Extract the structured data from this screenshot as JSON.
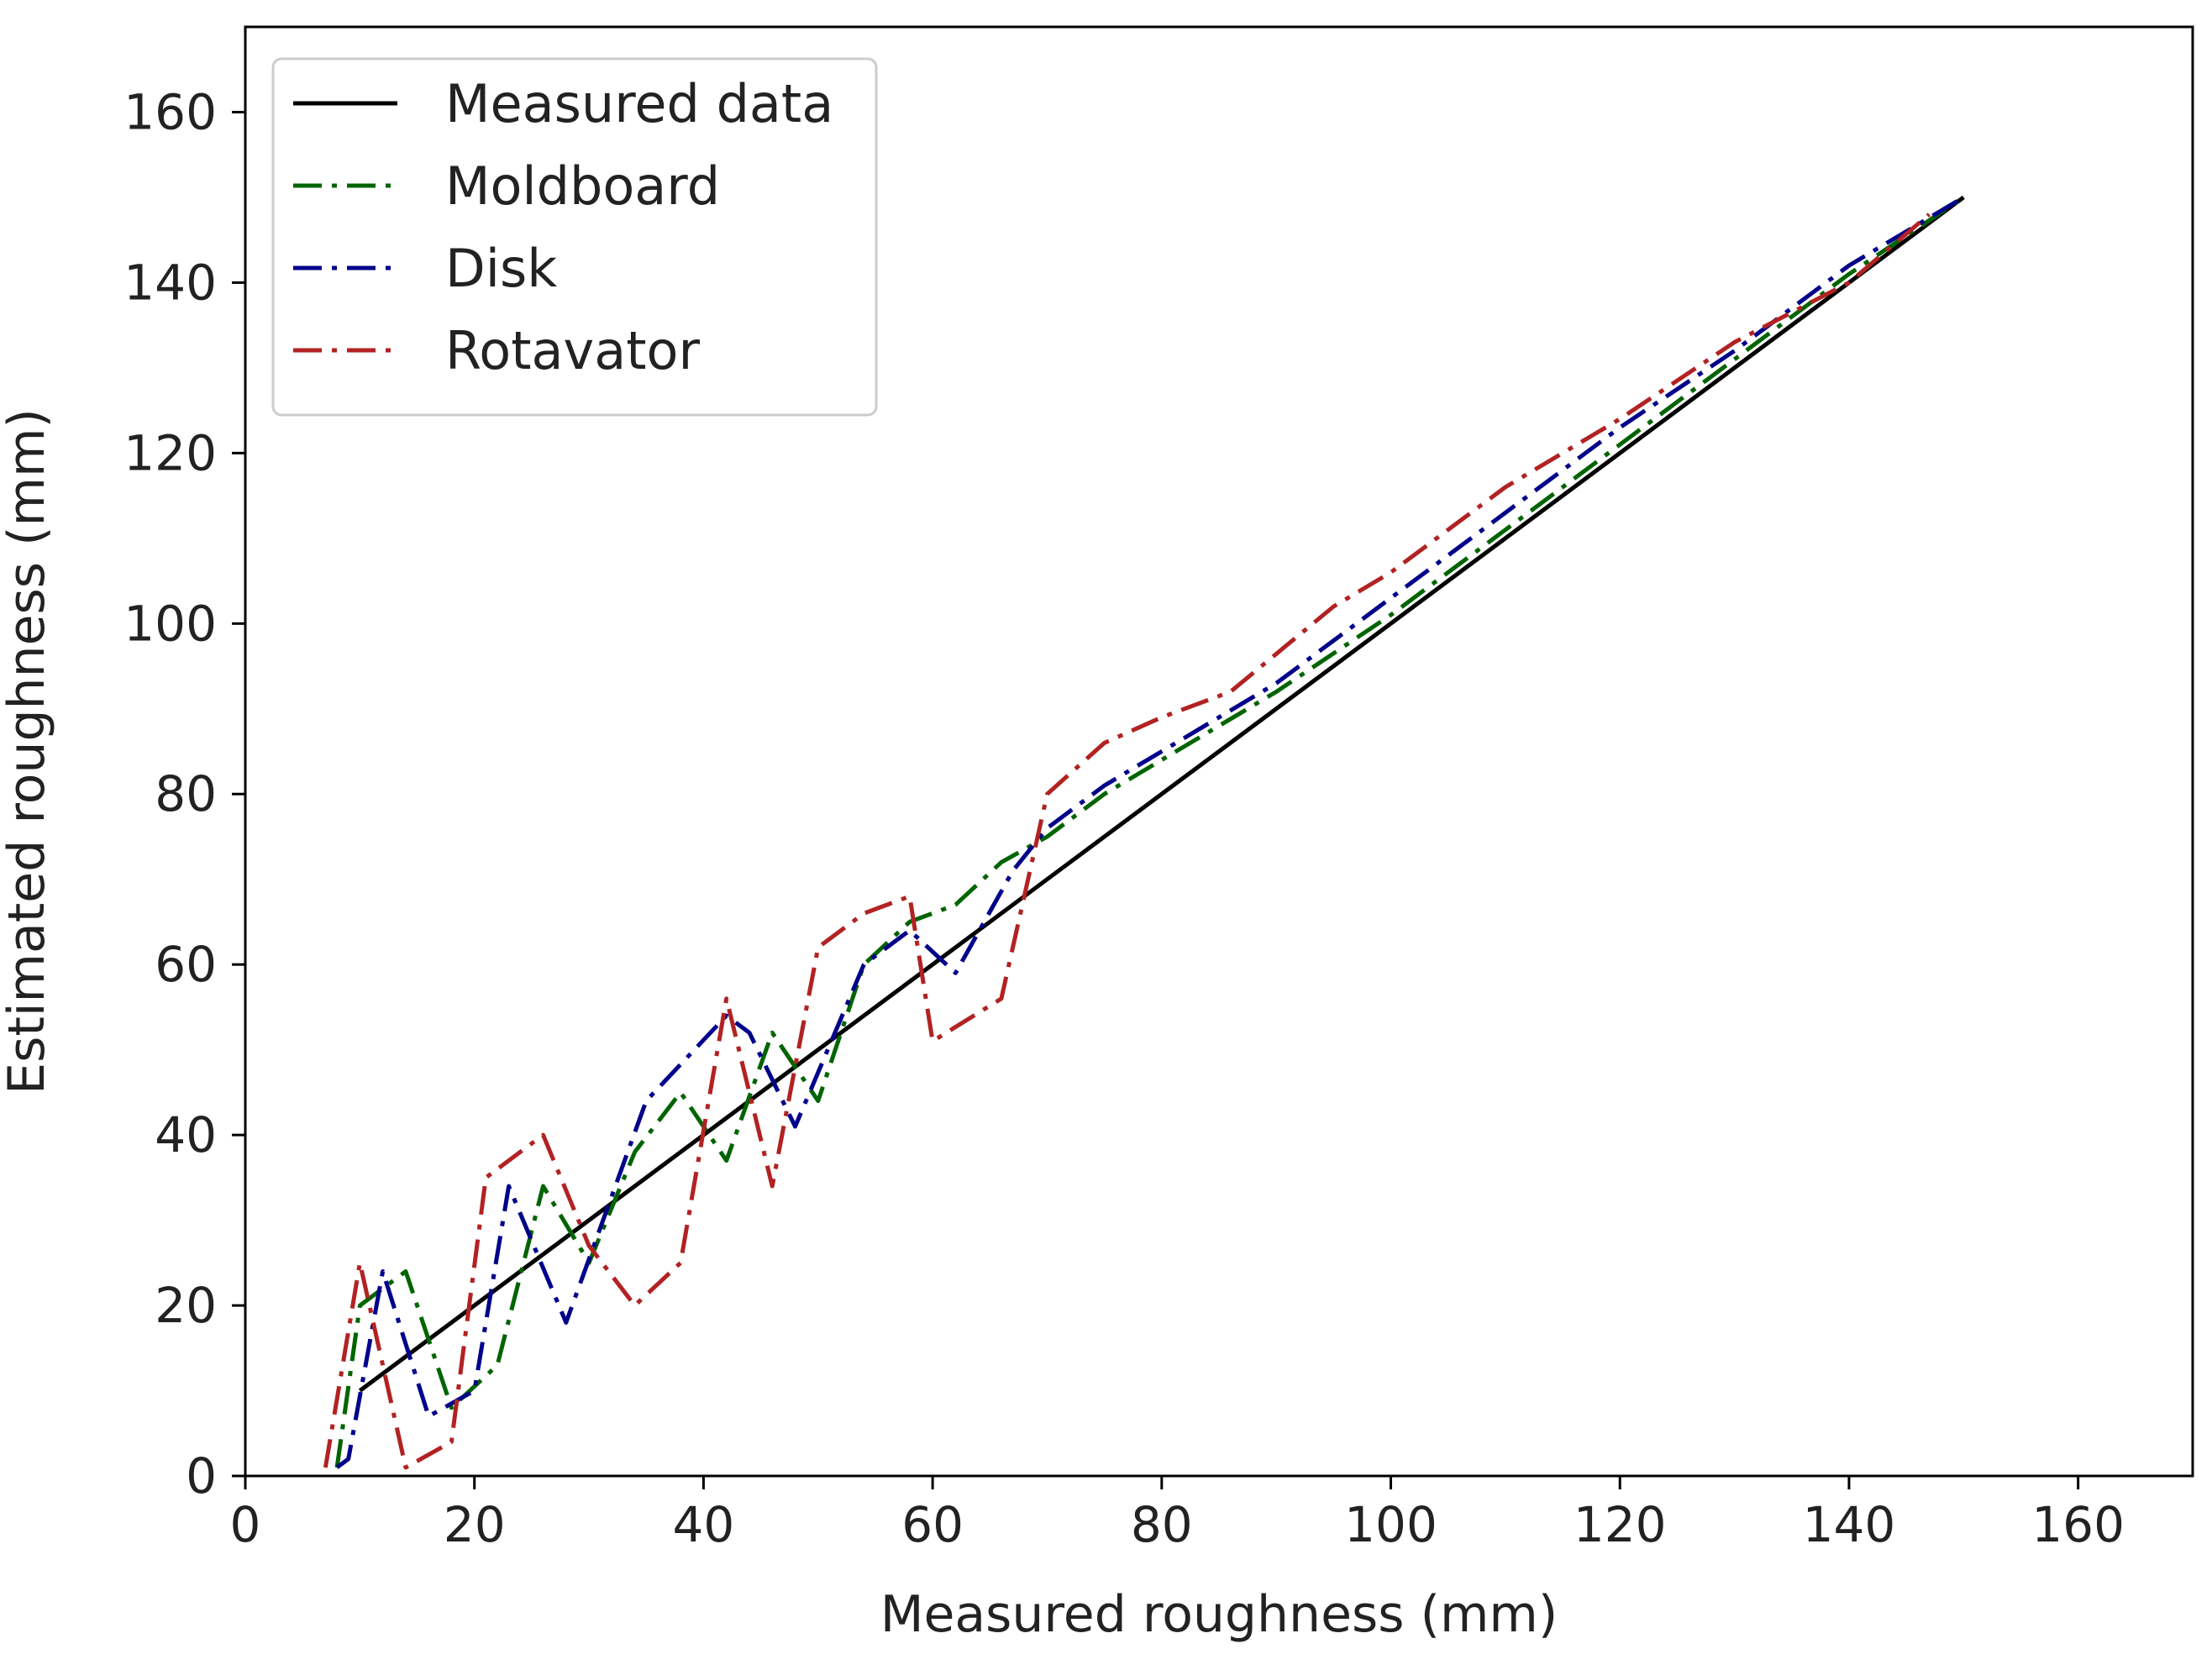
{
  "chart_data": {
    "type": "line",
    "title": "",
    "xlabel": "Measured roughness (mm)",
    "ylabel": "Estimated roughness (mm)",
    "xlim": [
      0,
      170
    ],
    "ylim": [
      0,
      170
    ],
    "xticks": [
      0,
      20,
      40,
      60,
      80,
      100,
      120,
      140,
      160
    ],
    "yticks": [
      0,
      20,
      40,
      60,
      80,
      100,
      120,
      140,
      160
    ],
    "grid": false,
    "legend_position": "top-left",
    "series": [
      {
        "name": "Measured data",
        "color": "#000000",
        "style": "solid",
        "x": [
          10,
          150
        ],
        "y": [
          10,
          150
        ]
      },
      {
        "name": "Moldboard",
        "color": "#006400",
        "style": "dashdot",
        "x": [
          8,
          10,
          14,
          18,
          22,
          26,
          30,
          34,
          38,
          42,
          46,
          50,
          54,
          58,
          62,
          66,
          70,
          75,
          80,
          90,
          100,
          110,
          120,
          130,
          140,
          150
        ],
        "y": [
          1,
          20,
          24,
          8,
          13,
          34,
          25,
          38,
          45,
          37,
          52,
          44,
          60,
          65,
          67,
          72,
          75,
          80,
          84,
          92,
          101,
          111,
          121,
          131,
          141,
          150
        ]
      },
      {
        "name": "Disk",
        "color": "#00008B",
        "style": "dashdot",
        "x": [
          8,
          9,
          12,
          16,
          20,
          23,
          28,
          35,
          42,
          44,
          48,
          54,
          58,
          62,
          67,
          70,
          75,
          80,
          90,
          100,
          110,
          120,
          130,
          140,
          150
        ],
        "y": [
          1,
          2,
          24,
          7,
          10,
          34,
          18,
          44,
          54,
          52,
          41,
          60,
          64,
          59,
          71,
          76,
          81,
          85,
          93,
          103,
          113,
          123,
          132,
          142,
          150
        ]
      },
      {
        "name": "Rotavator",
        "color": "#B22222",
        "style": "dashdot",
        "x": [
          7,
          10,
          14,
          18,
          21,
          26,
          30,
          34,
          38,
          42,
          46,
          50,
          54,
          58,
          60,
          66,
          70,
          75,
          80,
          86,
          95,
          100,
          110,
          120,
          130,
          140,
          147
        ],
        "y": [
          1,
          25,
          1,
          4,
          35,
          40,
          27,
          20,
          25,
          56,
          34,
          62,
          66,
          68,
          51,
          56,
          80,
          86,
          89,
          92,
          102,
          106,
          116,
          124,
          133,
          140,
          148
        ]
      }
    ]
  }
}
